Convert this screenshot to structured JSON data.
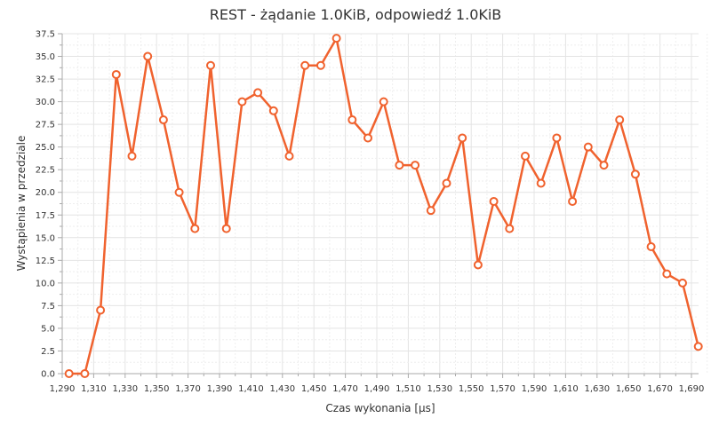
{
  "chart_data": {
    "type": "line",
    "title": "REST - żądanie 1.0KiB, odpowiedź 1.0KiB",
    "xlabel": "Czas wykonania [µs]",
    "ylabel": "Wystąpienia w przedziale",
    "xlim": [
      1290,
      1700
    ],
    "ylim": [
      0,
      37.5
    ],
    "x_ticks": [
      "1,290",
      "1,310",
      "1,330",
      "1,350",
      "1,370",
      "1,390",
      "1,410",
      "1,430",
      "1,450",
      "1,470",
      "1,490",
      "1,510",
      "1,530",
      "1,550",
      "1,570",
      "1,590",
      "1,610",
      "1,630",
      "1,650",
      "1,670",
      "1,690"
    ],
    "y_ticks": [
      "0.0",
      "2.5",
      "5.0",
      "7.5",
      "10.0",
      "12.5",
      "15.0",
      "17.5",
      "20.0",
      "22.5",
      "25.0",
      "27.5",
      "30.0",
      "32.5",
      "35.0",
      "37.5"
    ],
    "grid": true,
    "color": "#f0622e",
    "series": [
      {
        "x": [
          1300,
          1310,
          1320,
          1330,
          1340,
          1350,
          1360,
          1370,
          1380,
          1390,
          1400,
          1410,
          1420,
          1430,
          1440,
          1450,
          1460,
          1470,
          1480,
          1490,
          1500,
          1510,
          1520,
          1530,
          1540,
          1550,
          1560,
          1570,
          1580,
          1590,
          1600,
          1610,
          1620,
          1630,
          1640,
          1650,
          1660,
          1670,
          1680,
          1690,
          1700
        ],
        "values": [
          0,
          0,
          7,
          33,
          24,
          35,
          28,
          20,
          16,
          34,
          16,
          30,
          31,
          29,
          24,
          34,
          34,
          37,
          28,
          26,
          30,
          23,
          23,
          18,
          21,
          26,
          12,
          19,
          16,
          24,
          21,
          26,
          19,
          25,
          23,
          28,
          22,
          14,
          11,
          10,
          3
        ]
      }
    ]
  }
}
